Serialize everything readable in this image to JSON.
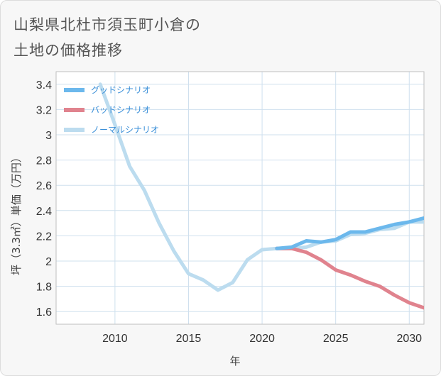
{
  "title_lines": [
    "山梨県北杜市須玉町小倉の",
    "土地の価格推移"
  ],
  "chart_data": {
    "type": "line",
    "xlabel": "年",
    "ylabel": "坪（3.3㎡）単価（万円）",
    "xlim": [
      2006,
      2031
    ],
    "ylim": [
      1.5,
      3.5
    ],
    "x_ticks": [
      2010,
      2015,
      2020,
      2025,
      2030
    ],
    "y_ticks": [
      1.6,
      1.8,
      2,
      2.2,
      2.4,
      2.6,
      2.8,
      3,
      3.2,
      3.4
    ],
    "grid": true,
    "legend_position": "top-left",
    "series": [
      {
        "name": "グッドシナリオ",
        "color": "#6cb8ec",
        "x": [
          2021,
          2022,
          2023,
          2024,
          2025,
          2026,
          2027,
          2028,
          2029,
          2030,
          2031
        ],
        "y": [
          2.1,
          2.11,
          2.16,
          2.15,
          2.17,
          2.23,
          2.23,
          2.26,
          2.29,
          2.31,
          2.34
        ]
      },
      {
        "name": "バッドシナリオ",
        "color": "#e0838e",
        "x": [
          2021,
          2022,
          2023,
          2024,
          2025,
          2026,
          2027,
          2028,
          2029,
          2030,
          2031
        ],
        "y": [
          2.1,
          2.1,
          2.07,
          2.01,
          1.93,
          1.89,
          1.84,
          1.8,
          1.73,
          1.67,
          1.63
        ]
      },
      {
        "name": "ノーマルシナリオ",
        "color": "#bcdcef",
        "x": [
          2009,
          2010,
          2011,
          2012,
          2013,
          2014,
          2015,
          2016,
          2017,
          2018,
          2019,
          2020,
          2021,
          2022,
          2023,
          2024,
          2025,
          2026,
          2027,
          2028,
          2029,
          2030,
          2031
        ],
        "y": [
          3.4,
          3.08,
          2.75,
          2.56,
          2.3,
          2.08,
          1.9,
          1.85,
          1.77,
          1.83,
          2.01,
          2.09,
          2.1,
          2.1,
          2.11,
          2.15,
          2.16,
          2.21,
          2.22,
          2.25,
          2.26,
          2.31,
          2.31
        ]
      }
    ]
  }
}
